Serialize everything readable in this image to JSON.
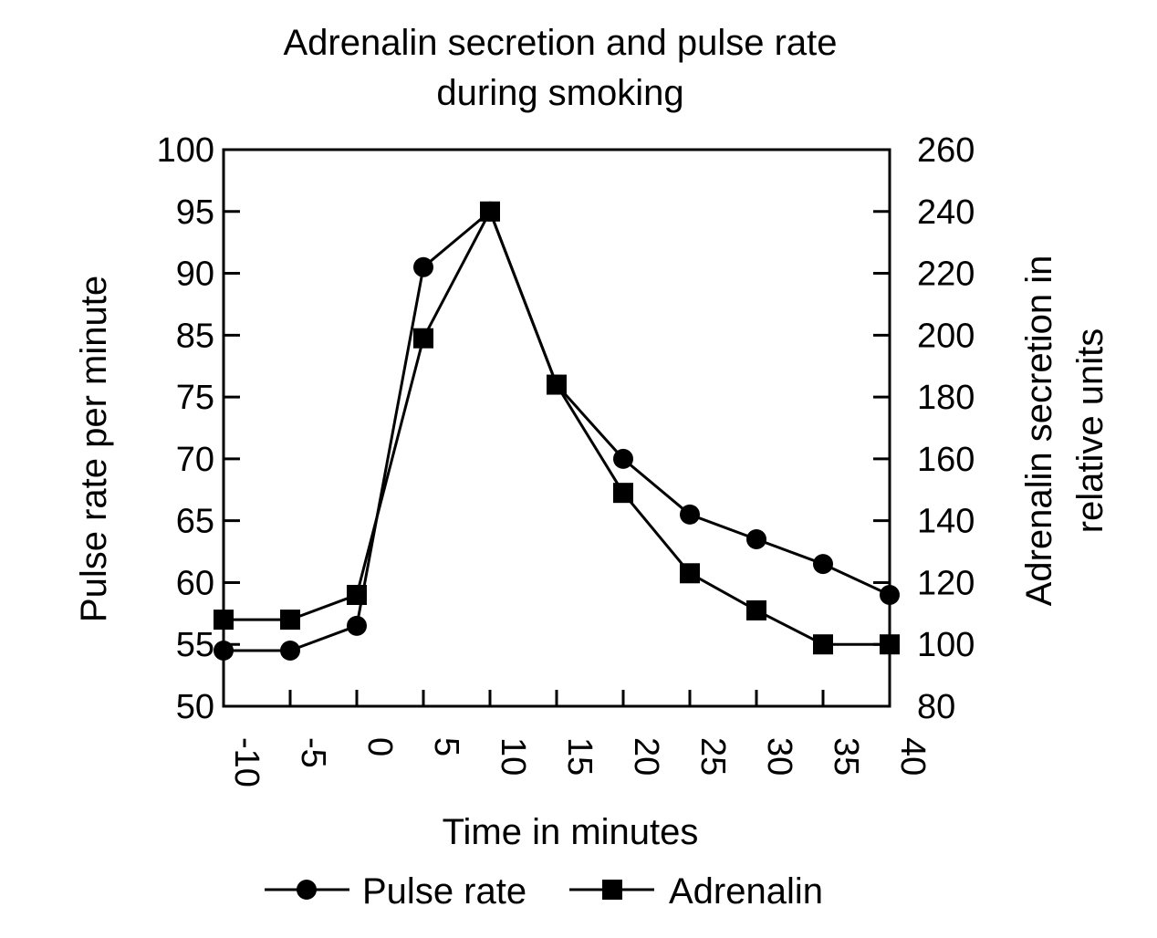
{
  "chart_data": {
    "type": "line",
    "title_lines": [
      "Adrenalin secretion and pulse rate",
      "during smoking"
    ],
    "xlabel": "Time in minutes",
    "ylabel_left": "Pulse rate per minute",
    "ylabel_right_lines": [
      "Adrenalin secretion in",
      "relative units"
    ],
    "x": [
      -10,
      -5,
      0,
      5,
      10,
      15,
      20,
      25,
      30,
      35,
      40
    ],
    "x_tick_labels": [
      "-10",
      "-5",
      "0",
      "5",
      "10",
      "15",
      "20",
      "25",
      "30",
      "35",
      "40"
    ],
    "y_left_tick_labels": [
      "100",
      "95",
      "90",
      "85",
      "75",
      "70",
      "65",
      "60",
      "55",
      "50"
    ],
    "y_right_tick_labels": [
      "260",
      "240",
      "220",
      "200",
      "180",
      "160",
      "140",
      "120",
      "100",
      "80"
    ],
    "y_right_range": [
      80,
      260
    ],
    "series": [
      {
        "name": "Pulse rate",
        "axis": "left",
        "marker": "circle",
        "values": [
          54.5,
          54.5,
          56.5,
          90.5,
          95,
          77,
          70,
          65.5,
          63.5,
          61.5,
          59
        ]
      },
      {
        "name": "Adrenalin",
        "axis": "right",
        "marker": "square",
        "values": [
          108,
          108,
          116,
          199,
          240,
          184,
          149,
          123,
          111,
          100,
          100
        ]
      }
    ],
    "legend_position": "bottom",
    "grid": false,
    "color": "#000000"
  }
}
